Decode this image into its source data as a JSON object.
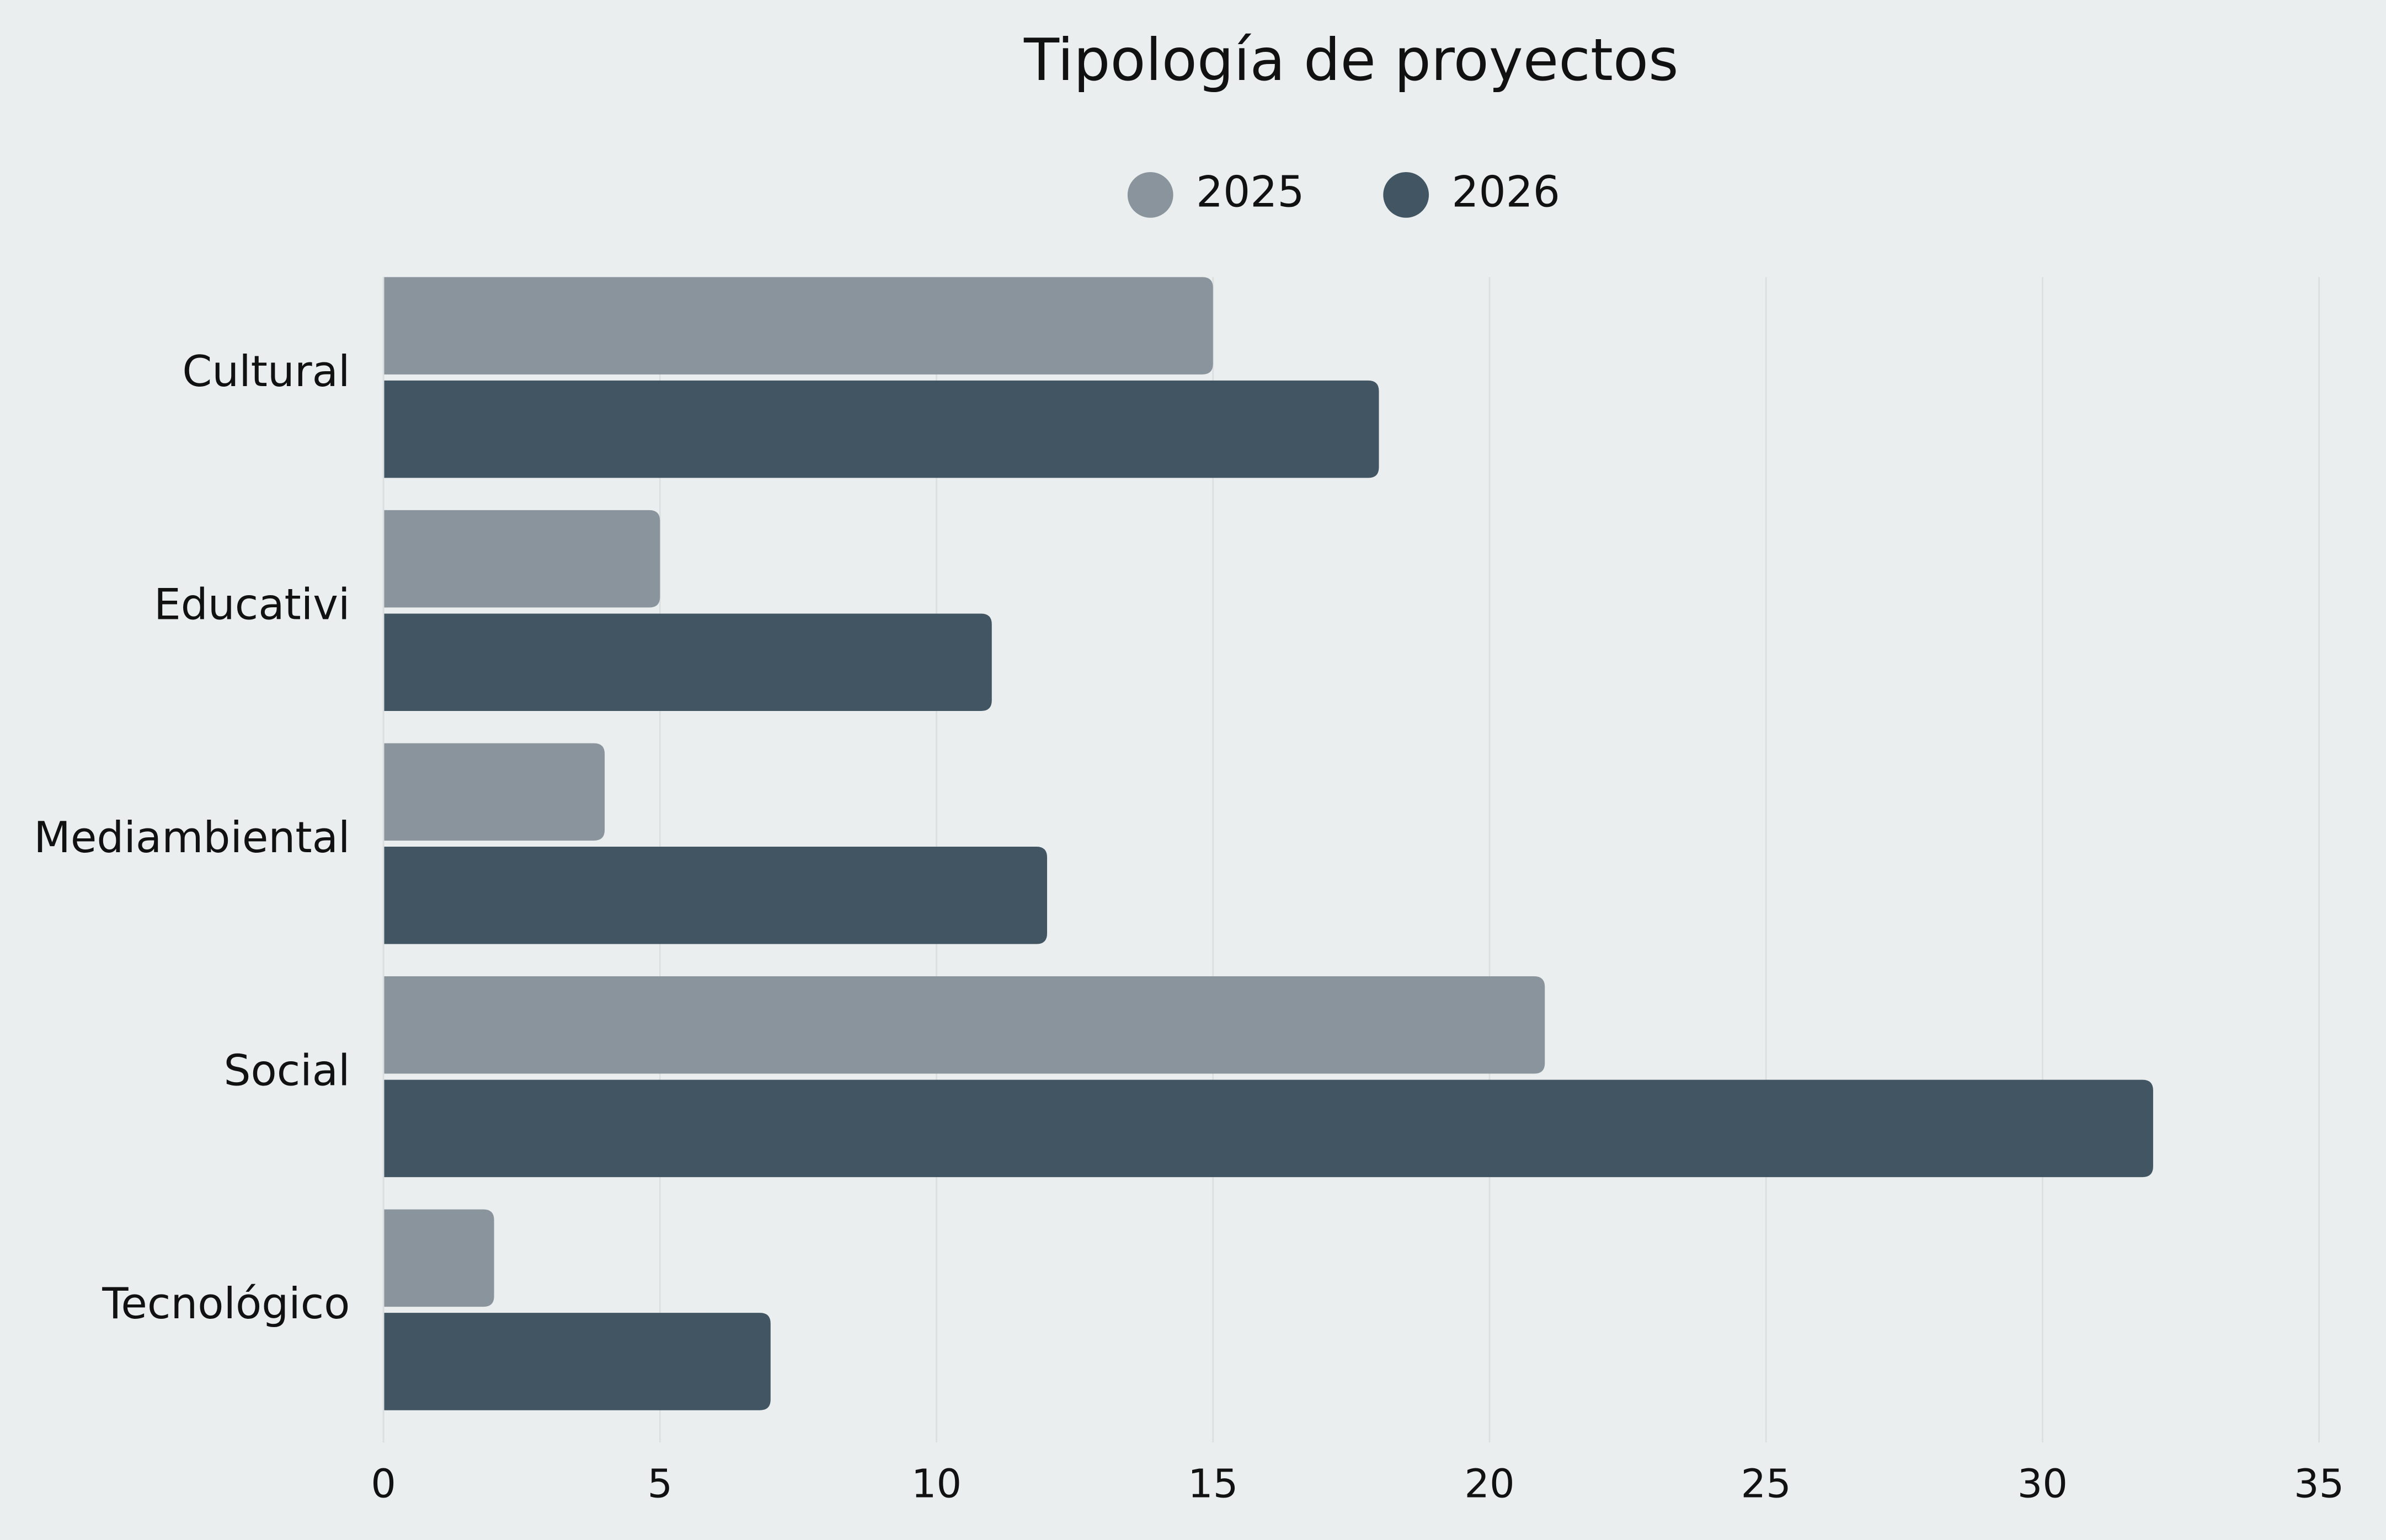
{
  "chart_data": {
    "type": "bar",
    "orientation": "horizontal",
    "title": "Tipología de proyectos",
    "categories": [
      "Cultural",
      "Educativi",
      "Mediambiental",
      "Social",
      "Tecnológico"
    ],
    "series": [
      {
        "name": "2025",
        "color": "#8a949c",
        "values": [
          15,
          5,
          4,
          21,
          2
        ]
      },
      {
        "name": "2026",
        "color": "#425563",
        "values": [
          18,
          11,
          12,
          32,
          7
        ]
      }
    ],
    "xlim": [
      0,
      35
    ],
    "xticks": [
      0,
      5,
      10,
      15,
      20,
      25,
      30,
      35
    ],
    "grid": true,
    "legend": "top"
  }
}
